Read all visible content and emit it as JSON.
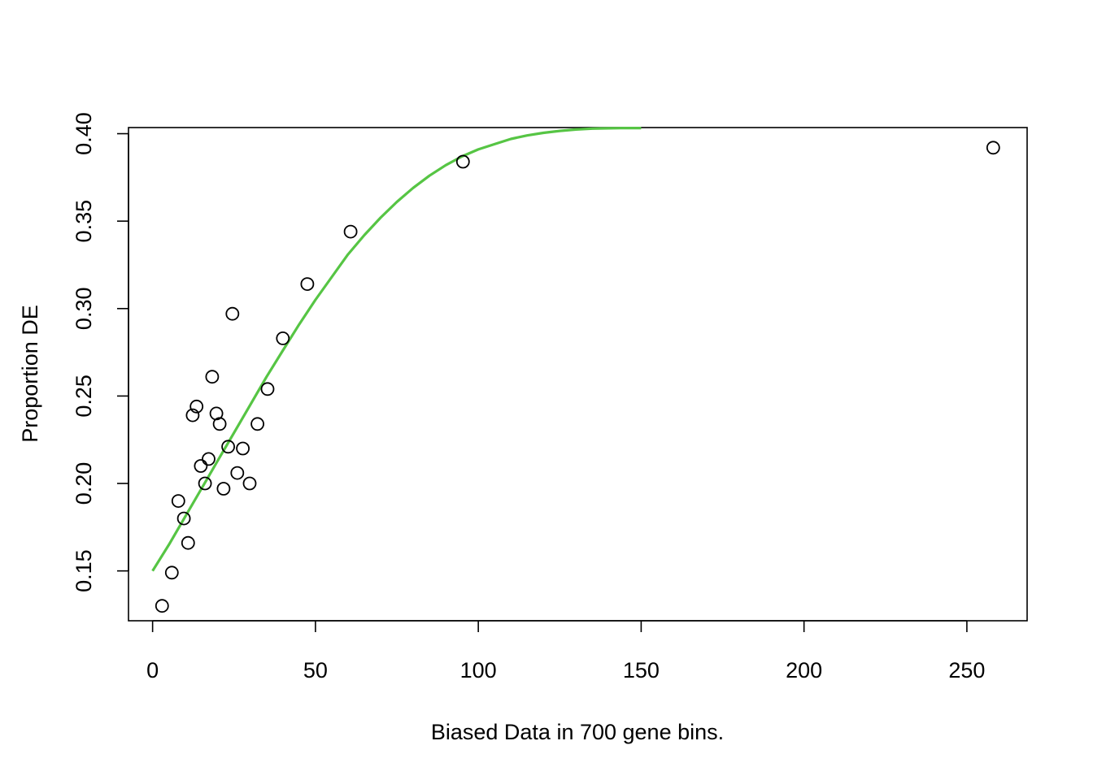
{
  "chart_data": {
    "type": "scatter",
    "title": "",
    "xlabel": "Biased Data in 700 gene bins.",
    "ylabel": "Proportion DE",
    "xlim": [
      -7.4,
      268.5
    ],
    "ylim": [
      0.1215,
      0.4035
    ],
    "x_ticks": [
      0,
      50,
      100,
      150,
      200,
      250
    ],
    "y_ticks": [
      0.15,
      0.2,
      0.25,
      0.3,
      0.35,
      0.4
    ],
    "x_tick_labels": [
      "0",
      "50",
      "100",
      "150",
      "200",
      "250"
    ],
    "y_tick_labels": [
      "0.15",
      "0.20",
      "0.25",
      "0.30",
      "0.35",
      "0.40"
    ],
    "grid": false,
    "legend": "none",
    "points": {
      "x": [
        2.9,
        5.9,
        7.9,
        9.6,
        10.9,
        12.3,
        13.5,
        14.8,
        16.1,
        17.2,
        18.3,
        19.6,
        20.6,
        21.8,
        23.2,
        24.5,
        26.0,
        27.7,
        29.8,
        32.2,
        35.3,
        40.0,
        47.5,
        60.8,
        95.3,
        258.1
      ],
      "y": [
        0.13,
        0.149,
        0.19,
        0.18,
        0.166,
        0.239,
        0.244,
        0.21,
        0.2,
        0.214,
        0.261,
        0.24,
        0.234,
        0.197,
        0.221,
        0.297,
        0.206,
        0.22,
        0.2,
        0.234,
        0.254,
        0.283,
        0.314,
        0.344,
        0.384,
        0.392
      ],
      "color": "#000000"
    },
    "fit_curve": {
      "color": "#56C544",
      "x": [
        0,
        5,
        10,
        15,
        20,
        25,
        30,
        35,
        40,
        45,
        50,
        55,
        60,
        65,
        70,
        75,
        80,
        85,
        90,
        95,
        100,
        105,
        110,
        115,
        120,
        125,
        130,
        135,
        140,
        145,
        150
      ],
      "y": [
        0.15,
        0.165,
        0.181,
        0.197,
        0.213,
        0.229,
        0.245,
        0.261,
        0.276,
        0.291,
        0.305,
        0.318,
        0.331,
        0.342,
        0.352,
        0.361,
        0.369,
        0.376,
        0.382,
        0.387,
        0.391,
        0.394,
        0.397,
        0.399,
        0.4005,
        0.4016,
        0.4024,
        0.4029,
        0.4031,
        0.4032,
        0.4032
      ]
    }
  }
}
